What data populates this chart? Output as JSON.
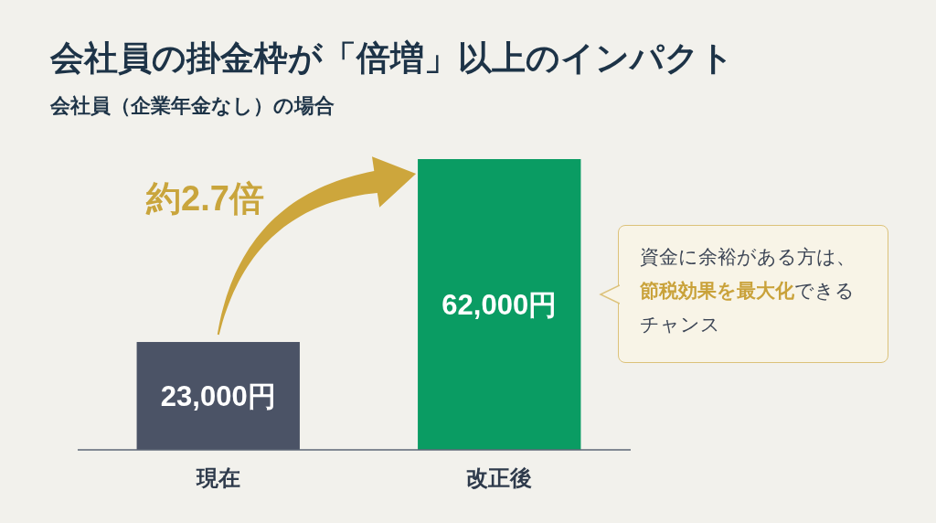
{
  "chart_data": {
    "type": "bar",
    "title": "会社員の掛金枠が「倍増」以上のインパクト",
    "subtitle": "会社員（企業年金なし）の場合",
    "categories": [
      "現在",
      "改正後"
    ],
    "values": [
      23000,
      62000
    ],
    "colors": [
      "#4b5366",
      "#0a9c63"
    ],
    "value_labels": [
      "23,000円",
      "62,000円"
    ],
    "annotations": [
      "約2.7倍",
      "資金に余裕がある方は、",
      "節税効果を最大化",
      "できるチャンス"
    ]
  }
}
